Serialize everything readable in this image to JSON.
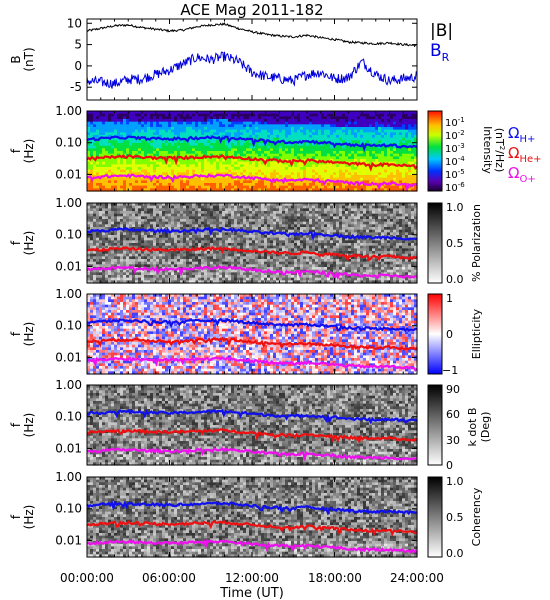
{
  "title": "ACE Mag 2011-182",
  "x_axis": {
    "label": "Time (UT)",
    "ticks": [
      "00:00:00",
      "06:00:00",
      "12:00:00",
      "18:00:00",
      "24:00:00"
    ],
    "range_hours": [
      0,
      24
    ]
  },
  "frequency_ticks": [
    "1.00",
    "0.10",
    "0.01"
  ],
  "frequency_range_hz": [
    0.003,
    1.0
  ],
  "frequency_scale": "log",
  "colors": {
    "B_total": "#000000",
    "B_R": "#0000dd",
    "H_plus": "#1010ee",
    "He_plus": "#ee1010",
    "O_plus": "#ee10ee"
  },
  "legend_B": {
    "total": "|B|",
    "radial_main": "B",
    "radial_sub": "R"
  },
  "legend_ions": [
    {
      "main": "Ω",
      "sub": "H+",
      "color": "#1010ee"
    },
    {
      "main": "Ω",
      "sub": "He+",
      "color": "#ee1010"
    },
    {
      "main": "Ω",
      "sub": "O+",
      "color": "#ee10ee"
    }
  ],
  "panels": [
    {
      "type": "line",
      "ylabel_top": "B",
      "ylabel_bottom": "(nT)",
      "yticks": [
        "10",
        "5",
        "0",
        "-5"
      ],
      "ylim": [
        -8,
        11
      ]
    },
    {
      "type": "spectrogram",
      "ylabel_top": "f",
      "ylabel_bottom": "(Hz)",
      "colorbar": {
        "scheme": "rainbow",
        "label": "Intensity",
        "unit_main": "(nT",
        "unit_sup": "2",
        "unit_tail": "/Hz)",
        "ticks": [
          {
            "base": "10",
            "exp": "-1"
          },
          {
            "base": "10",
            "exp": "-2"
          },
          {
            "base": "10",
            "exp": "-3"
          },
          {
            "base": "10",
            "exp": "-4"
          },
          {
            "base": "10",
            "exp": "-5"
          },
          {
            "base": "10",
            "exp": "-6"
          }
        ]
      }
    },
    {
      "type": "spectrogram",
      "ylabel_top": "f",
      "ylabel_bottom": "(Hz)",
      "colorbar": {
        "scheme": "gray",
        "label": "% Polarization",
        "ticks": [
          "1.0",
          "0.5",
          "0.0"
        ]
      }
    },
    {
      "type": "spectrogram",
      "ylabel_top": "f",
      "ylabel_bottom": "(Hz)",
      "colorbar": {
        "scheme": "bwr",
        "label": "Ellipticity",
        "ticks": [
          "1",
          "0",
          "−1"
        ]
      }
    },
    {
      "type": "spectrogram",
      "ylabel_top": "f",
      "ylabel_bottom": "(Hz)",
      "colorbar": {
        "scheme": "gray",
        "label_line1": "k dot B",
        "label_line2": "(Deg)",
        "ticks": [
          "90",
          "60",
          "30",
          "0"
        ]
      }
    },
    {
      "type": "spectrogram",
      "ylabel_top": "f",
      "ylabel_bottom": "(Hz)",
      "colorbar": {
        "scheme": "gray",
        "label": "Coherency",
        "ticks": [
          "1.0",
          "0.5",
          "0.0"
        ]
      }
    }
  ],
  "chart_data": {
    "type": "line",
    "title": "ACE Mag 2011-182",
    "xlabel": "Time (UT)",
    "x_hours": [
      0,
      1,
      2,
      3,
      4,
      5,
      6,
      7,
      8,
      9,
      10,
      11,
      12,
      13,
      14,
      15,
      16,
      17,
      18,
      19,
      20,
      21,
      22,
      23,
      24
    ],
    "magnetic_field": {
      "ylabel": "B (nT)",
      "ylim": [
        -8,
        11
      ],
      "series": [
        {
          "name": "|B|",
          "values": [
            8.2,
            8.8,
            9.4,
            9.6,
            9.0,
            8.6,
            8.2,
            8.4,
            9.2,
            9.6,
            9.8,
            8.8,
            8.0,
            7.4,
            7.0,
            6.8,
            7.2,
            6.6,
            6.2,
            5.6,
            5.4,
            5.2,
            5.4,
            5.0,
            4.8
          ]
        },
        {
          "name": "B_R",
          "values": [
            -3.5,
            -3.8,
            -4.2,
            -3.2,
            -3.0,
            -2.0,
            -1.0,
            0.5,
            2.0,
            1.5,
            2.2,
            1.0,
            -1.5,
            -2.5,
            -3.0,
            -3.5,
            -2.0,
            -1.5,
            -3.0,
            -2.8,
            1.0,
            -2.0,
            -3.5,
            -3.0,
            -2.5
          ]
        }
      ]
    },
    "cyclotron_frequencies_hz": {
      "ylabel": "f (Hz)",
      "series": [
        {
          "name": "H+",
          "values": [
            0.127,
            0.134,
            0.144,
            0.146,
            0.138,
            0.134,
            0.131,
            0.134,
            0.141,
            0.146,
            0.148,
            0.136,
            0.124,
            0.114,
            0.108,
            0.104,
            0.111,
            0.102,
            0.096,
            0.087,
            0.084,
            0.081,
            0.083,
            0.077,
            0.074
          ]
        },
        {
          "name": "He+",
          "values": [
            0.032,
            0.0335,
            0.036,
            0.0365,
            0.0345,
            0.0335,
            0.033,
            0.0335,
            0.035,
            0.0365,
            0.037,
            0.034,
            0.031,
            0.0285,
            0.027,
            0.026,
            0.028,
            0.0255,
            0.024,
            0.022,
            0.021,
            0.02,
            0.021,
            0.019,
            0.0185
          ]
        },
        {
          "name": "O+",
          "values": [
            0.008,
            0.0084,
            0.009,
            0.0091,
            0.0086,
            0.0084,
            0.0082,
            0.0084,
            0.0088,
            0.0091,
            0.0093,
            0.0085,
            0.0078,
            0.0071,
            0.0068,
            0.0065,
            0.0069,
            0.0064,
            0.006,
            0.0054,
            0.0052,
            0.0051,
            0.0052,
            0.0048,
            0.0046
          ]
        }
      ]
    }
  }
}
